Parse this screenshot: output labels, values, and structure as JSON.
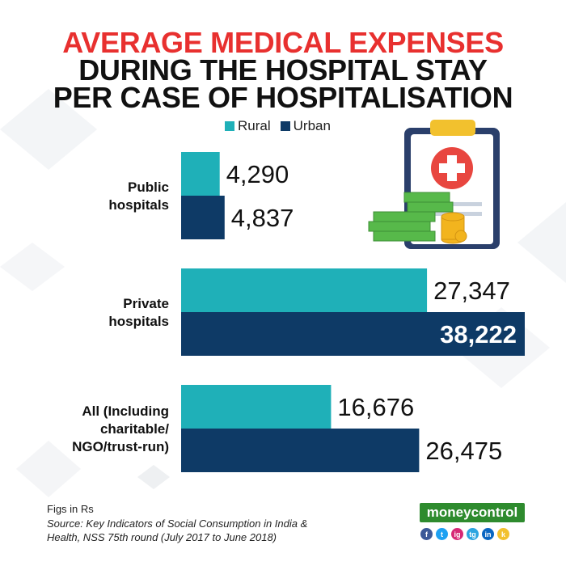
{
  "title": {
    "line1": "AVERAGE MEDICAL EXPENSES",
    "line2": "DURING THE HOSPITAL STAY",
    "line3": "PER CASE OF HOSPITALISATION"
  },
  "colors": {
    "title_accent": "#e8302f",
    "title_main": "#111111",
    "rural": "#1fb0b8",
    "urban": "#0e3a66",
    "brand": "#2e8b2e"
  },
  "chart_data": {
    "type": "bar",
    "orientation": "horizontal",
    "categories": [
      [
        "Public",
        "hospitals"
      ],
      [
        "Private",
        "hospitals"
      ],
      [
        "All (Including",
        "charitable/",
        "NGO/trust-run)"
      ]
    ],
    "series": [
      {
        "name": "Rural",
        "values": [
          4290,
          27347,
          16676
        ],
        "labels": [
          "4,290",
          "27,347",
          "16,676"
        ]
      },
      {
        "name": "Urban",
        "values": [
          4837,
          38222,
          26475
        ],
        "labels": [
          "4,837",
          "38,222",
          "26,475"
        ]
      }
    ],
    "legend": "top",
    "grid": false
  },
  "illustration": {
    "icon": "clipboard-medical-cross-and-money-icon"
  },
  "footer": {
    "figs": "Figs in Rs",
    "source_line1": "Source: Key Indicators of Social Consumption in India &",
    "source_line2": "Health, NSS 75th round (July 2017 to June 2018)"
  },
  "brand": {
    "name": "moneycontrol",
    "socials": [
      "f",
      "t",
      "ig",
      "tg",
      "in",
      "k"
    ]
  }
}
